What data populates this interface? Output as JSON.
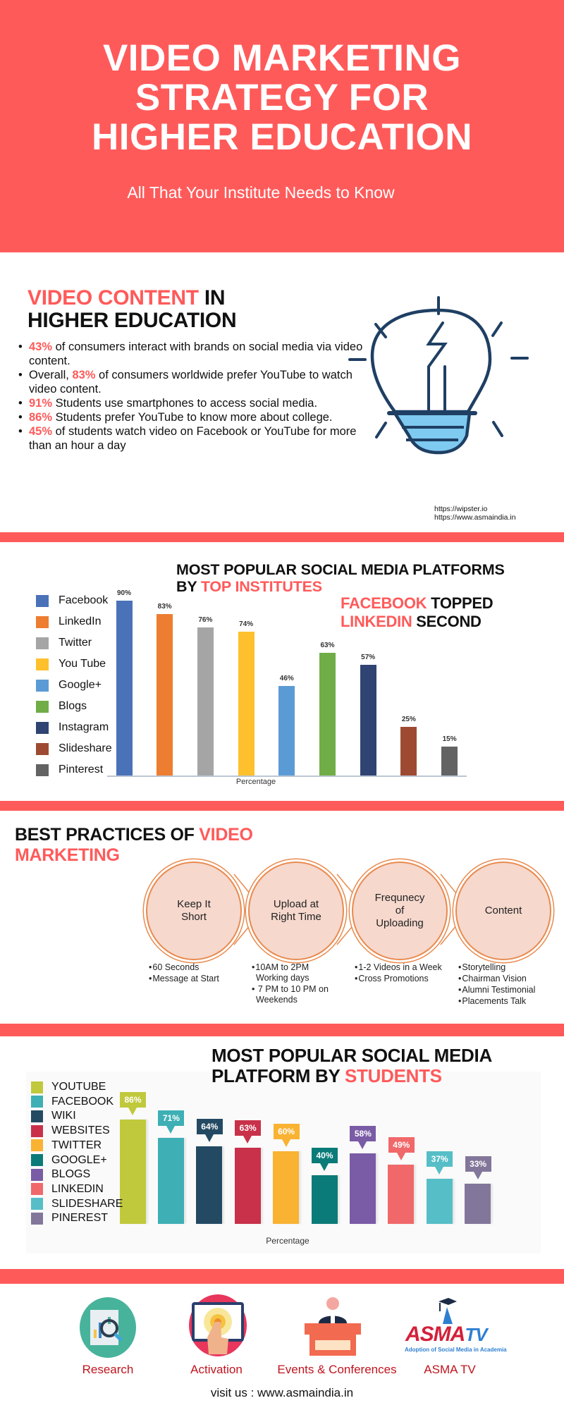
{
  "header": {
    "title_lines": [
      "VIDEO MARKETING",
      "STRATEGY FOR",
      "HIGHER EDUCATION"
    ],
    "subtitle": "All That Your Institute Needs to Know"
  },
  "video_content": {
    "heading_red": "VIDEO CONTENT",
    "heading_black": " IN",
    "heading_line2": "HIGHER EDUCATION",
    "bullets": [
      {
        "pct": "43%",
        "text": " of consumers interact with brands on social media via video content.",
        "prefix": ""
      },
      {
        "prefix": "Overall, ",
        "pct": "83%",
        "text": " of consumers worldwide prefer YouTube to watch video content."
      },
      {
        "pct": "91%",
        "text": " Students use smartphones to access social media.",
        "prefix": ""
      },
      {
        "pct": "86%",
        "text": " Students prefer YouTube to know more about college.",
        "prefix": ""
      },
      {
        "pct": "45%",
        "text": " of students watch video on Facebook or YouTube for more than an hour a day",
        "prefix": ""
      }
    ],
    "icon": "lightbulb-icon",
    "sources": [
      "https://wipster.io",
      "https://www.asmaindia.in"
    ]
  },
  "institutes": {
    "heading_line1": "MOST POPULAR SOCIAL MEDIA PLATFORMS",
    "heading_line2_black": "BY ",
    "heading_line2_red": "TOP INSTITUTES",
    "callout_red1": "FACEBOOK",
    "callout_black1": " TOPPED",
    "callout_red2": "LINKEDIN",
    "callout_black2": " SECOND"
  },
  "practices": {
    "heading_black": "BEST PRACTICES OF ",
    "heading_red1": "VIDEO",
    "heading_red2": "MARKETING",
    "steps": [
      {
        "title": [
          "Keep It",
          "Short"
        ],
        "points": [
          "60 Seconds",
          "Message at Start"
        ]
      },
      {
        "title": [
          "Upload at",
          "Right Time"
        ],
        "points": [
          "10AM to 2PM Working days",
          " 7 PM to 10 PM on Weekends"
        ]
      },
      {
        "title": [
          "Frequnecy",
          "of",
          "Uploading"
        ],
        "points": [
          "1-2 Videos in a Week",
          "Cross Promotions"
        ]
      },
      {
        "title": [
          "Content"
        ],
        "points": [
          "Storytelling",
          "Chairman Vision",
          "Alumni Testimonial",
          "Placements Talk"
        ]
      }
    ]
  },
  "students": {
    "heading_line1": "MOST POPULAR SOCIAL MEDIA",
    "heading_line2_black": "PLATFORM BY ",
    "heading_line2_red": "STUDENTS"
  },
  "footer": {
    "items": [
      {
        "label": "Research",
        "icon": "research-magnifier-icon"
      },
      {
        "label": "Activation",
        "icon": "touch-screen-icon"
      },
      {
        "label": "Events & Conferences",
        "icon": "podium-speaker-icon"
      },
      {
        "label": "ASMA TV",
        "icon": "asma-tv-logo"
      }
    ],
    "logo_text": "ASMA TV",
    "logo_tagline": "Adoption of Social Media in Academia",
    "visit": "visit us : www.asmaindia.in"
  },
  "colors": {
    "accent": "#ff5a5a",
    "footer_label": "#c0141e"
  },
  "chart_data": [
    {
      "type": "bar",
      "title": "MOST POPULAR SOCIAL MEDIA PLATFORMS BY TOP INSTITUTES",
      "xlabel": "Percentage",
      "ylabel": "",
      "ylim": [
        0,
        100
      ],
      "legend": "left",
      "grid": false,
      "categories": [
        "Facebook",
        "LinkedIn",
        "Twitter",
        "You Tube",
        "Google+",
        "Blogs",
        "Instagram",
        "Slideshare",
        "Pinterest"
      ],
      "values": [
        90,
        83,
        76,
        74,
        46,
        63,
        57,
        25,
        15
      ],
      "labels": [
        "90%",
        "83%",
        "76%",
        "74%",
        "46%",
        "63%",
        "57%",
        "25%",
        "15%"
      ],
      "colors": [
        "#4a72b8",
        "#ed7d31",
        "#a5a5a5",
        "#fec02c",
        "#5b9bd5",
        "#70ad47",
        "#2f4473",
        "#9e4a33",
        "#636363"
      ]
    },
    {
      "type": "bar",
      "title": "MOST POPULAR SOCIAL MEDIA PLATFORM BY STUDENTS",
      "xlabel": "Percentage",
      "ylabel": "",
      "ylim": [
        0,
        100
      ],
      "legend": "left",
      "grid": false,
      "categories": [
        "YOUTUBE",
        "FACEBOOK",
        "WIKI",
        "WEBSITES",
        "TWITTER",
        "GOOGLE+",
        "BLOGS",
        "LINKEDIN",
        "SLIDESHARE",
        "PINEREST"
      ],
      "values": [
        86,
        71,
        64,
        63,
        60,
        40,
        58,
        49,
        37,
        33
      ],
      "labels": [
        "86%",
        "71%",
        "64%",
        "63%",
        "60%",
        "40%",
        "58%",
        "49%",
        "37%",
        "33%"
      ],
      "colors": [
        "#c0c93c",
        "#3eafb5",
        "#244a63",
        "#c9314b",
        "#f9b232",
        "#0a7b78",
        "#7a5ba6",
        "#f0686a",
        "#56bec7",
        "#82779a"
      ]
    }
  ]
}
